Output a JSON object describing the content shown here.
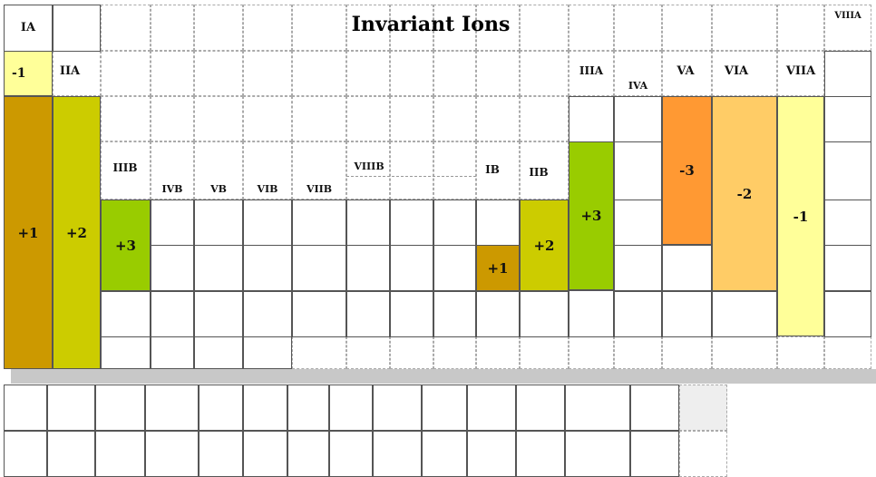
{
  "title": "Invariant Ions",
  "groups": {
    "IA": "IA",
    "IIA": "IIA",
    "IIIB": "IIIB",
    "IVB": "IVB",
    "VB": "VB",
    "VIB": "VIB",
    "VIIB": "VIIB",
    "VIIIB": "VIIIB",
    "IB": "IB",
    "IIB": "IIB",
    "IIIA": "IIIA",
    "IVA": "IVA",
    "VA": "VA",
    "VIA": "VIA",
    "VIIA": "VIIA",
    "VIIIA": "VIIIA"
  },
  "charges": {
    "hydrogen": "-1",
    "IA": "+1",
    "IIA": "+2",
    "IIIB": "+3",
    "IB": "+1",
    "IIB": "+2",
    "IIIA": "+3",
    "VA": "-3",
    "VIA": "-2",
    "VIIA": "-1"
  },
  "colors": {
    "hydrogen": "#ffff99",
    "IA": "#cc9900",
    "IIA": "#cccc00",
    "IIIB": "#99cc00",
    "IB": "#cc9900",
    "IIB": "#cccc00",
    "IIIA": "#99cc00",
    "VA": "#ff9933",
    "VIA": "#ffcc66",
    "VIIA": "#ffff99",
    "band": "#c8c8c8"
  }
}
